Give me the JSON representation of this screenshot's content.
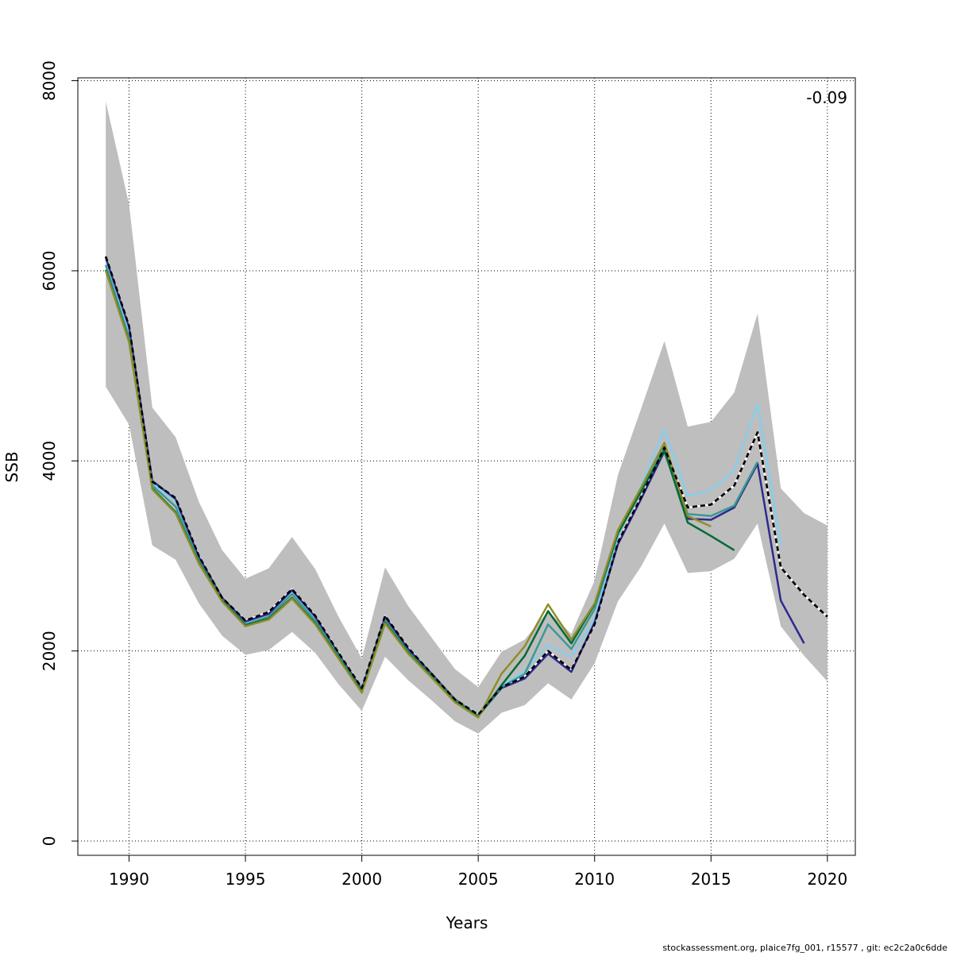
{
  "chart_data": {
    "type": "line",
    "title": "",
    "xlabel": "Years",
    "ylabel": "SSB",
    "xlim": [
      1987.8,
      2021.2
    ],
    "ylim": [
      -150,
      8030
    ],
    "xticks": [
      1990,
      1995,
      2000,
      2005,
      2010,
      2015,
      2020
    ],
    "yticks": [
      0,
      2000,
      4000,
      6000,
      8000
    ],
    "grid": true,
    "annotation": "-0.09",
    "confidence_band": {
      "x": [
        1989,
        1990,
        1991,
        1992,
        1993,
        1994,
        1995,
        1996,
        1997,
        1998,
        1999,
        2000,
        2001,
        2002,
        2003,
        2004,
        2005,
        2006,
        2007,
        2008,
        2009,
        2010,
        2011,
        2012,
        2013,
        2014,
        2015,
        2016,
        2017,
        2018,
        2019,
        2020
      ],
      "upper": [
        7780,
        6700,
        4560,
        4250,
        3570,
        3060,
        2760,
        2870,
        3200,
        2860,
        2360,
        1920,
        2880,
        2470,
        2140,
        1810,
        1620,
        1990,
        2120,
        2420,
        2180,
        2740,
        3850,
        4550,
        5260,
        4360,
        4410,
        4720,
        5550,
        3710,
        3450,
        3320
      ],
      "lower": [
        4780,
        4380,
        3110,
        2960,
        2500,
        2160,
        1960,
        2010,
        2200,
        1980,
        1650,
        1370,
        1940,
        1690,
        1480,
        1260,
        1130,
        1350,
        1430,
        1660,
        1490,
        1870,
        2520,
        2890,
        3340,
        2820,
        2840,
        2970,
        3340,
        2260,
        1950,
        1680
      ],
      "color": "#bebebe"
    },
    "series": [
      {
        "name": "",
        "color": "#000000",
        "dashed": true,
        "x": [
          1989,
          1990,
          1991,
          1992,
          1993,
          1994,
          1995,
          1996,
          1997,
          1998,
          1999,
          2000,
          2001,
          2002,
          2003,
          2004,
          2005,
          2006,
          2007,
          2008,
          2009,
          2010,
          2011,
          2012,
          2013,
          2014,
          2015,
          2016,
          2017,
          2018,
          2019,
          2020
        ],
        "y": [
          6150,
          5420,
          3780,
          3610,
          3000,
          2560,
          2320,
          2410,
          2650,
          2370,
          1980,
          1610,
          2370,
          2030,
          1760,
          1490,
          1330,
          1620,
          1730,
          2000,
          1800,
          2280,
          3140,
          3620,
          4140,
          3510,
          3540,
          3740,
          4300,
          2880,
          2590,
          2360
        ]
      },
      {
        "name": "",
        "color": "#87ceeb",
        "x": [
          1989,
          1990,
          1991,
          1992,
          1993,
          1994,
          1995,
          1996,
          1997,
          1998,
          1999,
          2000,
          2001,
          2002,
          2003,
          2004,
          2005,
          2006,
          2007,
          2008,
          2009,
          2010,
          2011,
          2012,
          2013,
          2014,
          2015,
          2016,
          2017,
          2018
        ],
        "y": [
          6120,
          5370,
          3760,
          3580,
          2980,
          2550,
          2300,
          2390,
          2630,
          2350,
          1970,
          1600,
          2350,
          2010,
          1750,
          1480,
          1320,
          1630,
          1790,
          2060,
          1940,
          2340,
          3200,
          3740,
          4330,
          3630,
          3690,
          3900,
          4600,
          3110
        ]
      },
      {
        "name": "",
        "color": "#2e2a8c",
        "x": [
          1989,
          1990,
          1991,
          1992,
          1993,
          1994,
          1995,
          1996,
          1997,
          1998,
          1999,
          2000,
          2001,
          2002,
          2003,
          2004,
          2005,
          2006,
          2007,
          2008,
          2009,
          2010,
          2011,
          2012,
          2013,
          2014,
          2015,
          2016,
          2017,
          2018,
          2019
        ],
        "y": [
          6140,
          5410,
          3790,
          3600,
          2990,
          2560,
          2310,
          2390,
          2640,
          2360,
          1970,
          1600,
          2360,
          2020,
          1760,
          1490,
          1320,
          1610,
          1710,
          1970,
          1780,
          2300,
          3120,
          3600,
          4100,
          3390,
          3380,
          3510,
          3970,
          2530,
          2080
        ]
      },
      {
        "name": "",
        "color": "#3a9a93",
        "x": [
          1989,
          1990,
          1991,
          1992,
          1993,
          1994,
          1995,
          1996,
          1997,
          1998,
          1999,
          2000,
          2001,
          2002,
          2003,
          2004,
          2005,
          2006,
          2007,
          2008,
          2009,
          2010,
          2011,
          2012,
          2013,
          2014,
          2015,
          2016,
          2017
        ],
        "y": [
          6060,
          5300,
          3740,
          3520,
          2950,
          2540,
          2280,
          2360,
          2600,
          2320,
          1950,
          1580,
          2320,
          1990,
          1740,
          1480,
          1320,
          1620,
          1760,
          2280,
          2020,
          2440,
          3230,
          3680,
          4150,
          3440,
          3420,
          3530,
          3990
        ]
      },
      {
        "name": "",
        "color": "#006b38",
        "x": [
          1989,
          1990,
          1991,
          1992,
          1993,
          1994,
          1995,
          1996,
          1997,
          1998,
          1999,
          2000,
          2001,
          2002,
          2003,
          2004,
          2005,
          2006,
          2007,
          2008,
          2009,
          2010,
          2011,
          2012,
          2013,
          2014,
          2015,
          2016
        ],
        "y": [
          6010,
          5260,
          3710,
          3460,
          2930,
          2530,
          2270,
          2340,
          2560,
          2290,
          1930,
          1570,
          2300,
          1980,
          1730,
          1470,
          1310,
          1640,
          1950,
          2420,
          2080,
          2490,
          3240,
          3680,
          4110,
          3350,
          3210,
          3060
        ]
      },
      {
        "name": "",
        "color": "#8f8d2a",
        "x": [
          1989,
          1990,
          1991,
          1992,
          1993,
          1994,
          1995,
          1996,
          1997,
          1998,
          1999,
          2000,
          2001,
          2002,
          2003,
          2004,
          2005,
          2006,
          2007,
          2008,
          2009,
          2010,
          2011,
          2012,
          2013,
          2014,
          2015
        ],
        "y": [
          6000,
          5250,
          3700,
          3450,
          2920,
          2520,
          2260,
          2330,
          2550,
          2280,
          1920,
          1560,
          2290,
          1970,
          1720,
          1460,
          1300,
          1760,
          2050,
          2490,
          2120,
          2500,
          3270,
          3720,
          4190,
          3420,
          3310
        ]
      }
    ]
  },
  "footer_text": "stockassessment.org, plaice7fg_001, r15577 , git: ec2c2a0c6dde"
}
